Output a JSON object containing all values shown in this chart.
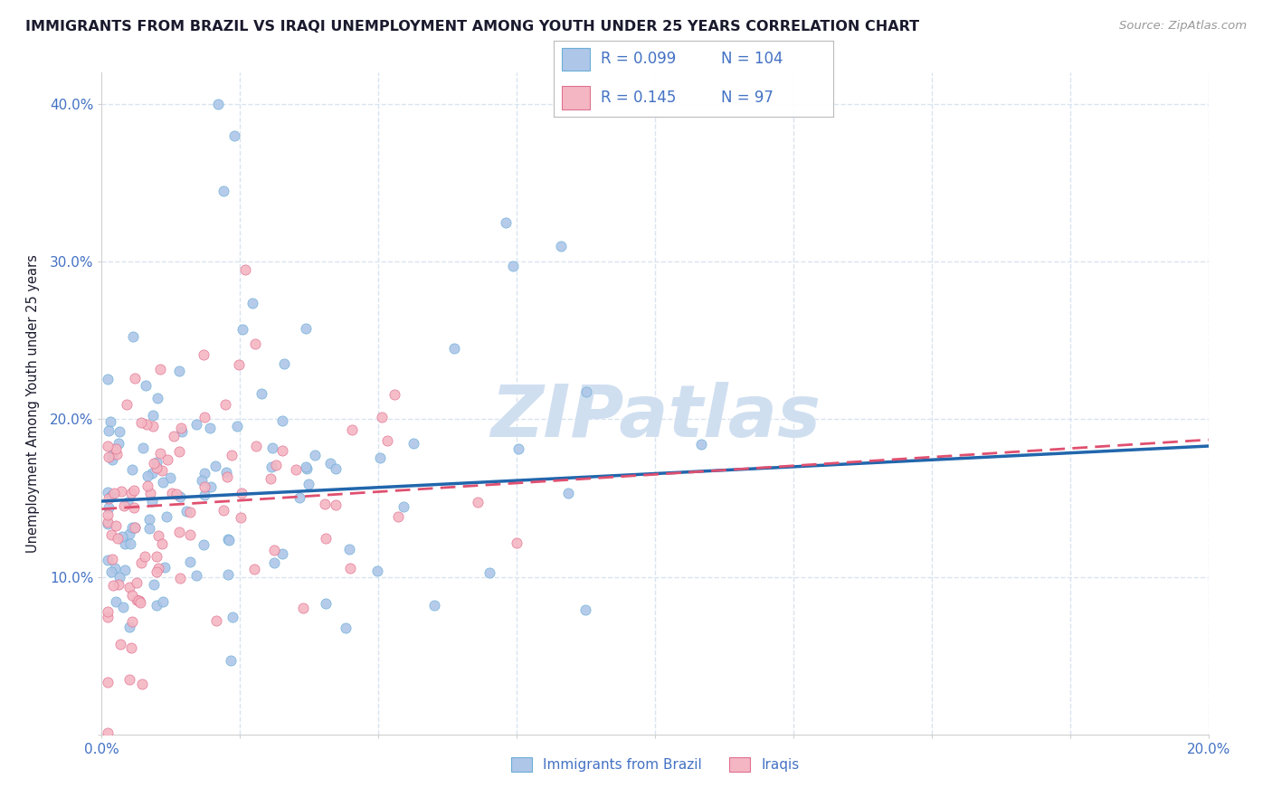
{
  "title": "IMMIGRANTS FROM BRAZIL VS IRAQI UNEMPLOYMENT AMONG YOUTH UNDER 25 YEARS CORRELATION CHART",
  "source": "Source: ZipAtlas.com",
  "ylabel": "Unemployment Among Youth under 25 years",
  "xlim": [
    0.0,
    0.2
  ],
  "ylim": [
    0.0,
    0.42
  ],
  "series1_label": "Immigrants from Brazil",
  "series1_R": 0.099,
  "series1_N": 104,
  "series1_color": "#aec6e8",
  "series1_edge_color": "#6baed6",
  "series1_line_color": "#2166ac",
  "series2_label": "Iraqis",
  "series2_R": 0.145,
  "series2_N": 97,
  "series2_color": "#f4b6c2",
  "series2_edge_color": "#e07090",
  "series2_line_color": "#e05070",
  "watermark": "ZIPatlas",
  "watermark_color": "#d0dff0",
  "background_color": "#ffffff",
  "grid_color": "#d8e4f0",
  "title_color": "#1a1a2e",
  "tick_color": "#4472c4",
  "legend_R_color": "#4472c4",
  "trend1_intercept": 0.148,
  "trend1_slope": 0.185,
  "trend2_intercept": 0.143,
  "trend2_slope": 0.22
}
